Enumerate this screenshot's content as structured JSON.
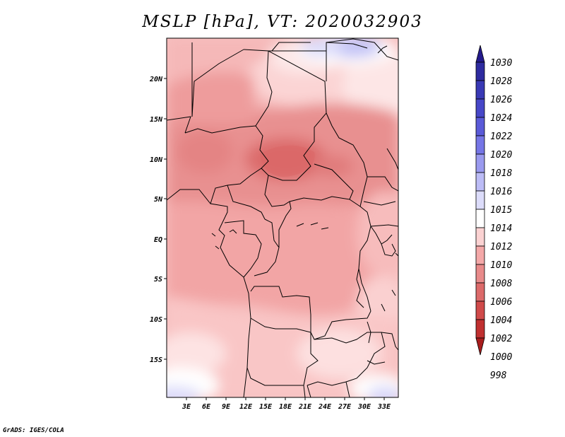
{
  "title": "MSLP [hPa], VT: 2020032903",
  "map": {
    "lat_labels": [
      "20N",
      "15N",
      "10N",
      "5N",
      "EQ",
      "5S",
      "10S",
      "15S"
    ],
    "lon_labels": [
      "3E",
      "6E",
      "9E",
      "12E",
      "15E",
      "18E",
      "21E",
      "24E",
      "27E",
      "30E",
      "33E"
    ]
  },
  "colorbar": {
    "labels": [
      "1030",
      "1028",
      "1026",
      "1024",
      "1022",
      "1020",
      "1018",
      "1016",
      "1015",
      "1014",
      "1012",
      "1010",
      "1008",
      "1006",
      "1004",
      "1002",
      "1000",
      "998"
    ],
    "colors": [
      "#241a8c",
      "#2e2ba0",
      "#3939b5",
      "#4747c8",
      "#5a5ad8",
      "#7676e6",
      "#9a9aef",
      "#bcbcf6",
      "#dcdcfa",
      "#ffffff",
      "#fbd2d2",
      "#f4a8a8",
      "#e88a8a",
      "#dc6a6a",
      "#d04a4a",
      "#c03030",
      "#a81c1c"
    ]
  },
  "footer": "GrADS: IGES/COLA"
}
